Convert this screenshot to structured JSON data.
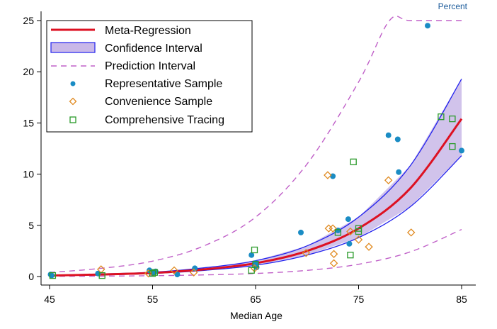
{
  "chart_data": {
    "type": "scatter",
    "title": "",
    "unit_label": "Percent",
    "xlabel": "Median Age",
    "ylabel": "",
    "xlim": [
      45,
      85
    ],
    "ylim": [
      -1,
      25.5
    ],
    "x_ticks": [
      45,
      55,
      65,
      75,
      85
    ],
    "y_ticks": [
      0,
      5,
      10,
      15,
      20,
      25
    ],
    "grid": "none",
    "legend_position": "top-left",
    "legend": [
      {
        "label": "Meta-Regression",
        "kind": "line",
        "color": "#dd1122"
      },
      {
        "label": "Confidence Interval",
        "kind": "band",
        "color": "#2222ee",
        "fill": "#c9b8e8"
      },
      {
        "label": "Prediction Interval",
        "kind": "dashed",
        "color": "#c060c8"
      },
      {
        "label": "Representative Sample",
        "kind": "dot",
        "color": "#1a8cc4"
      },
      {
        "label": "Convenience Sample",
        "kind": "diamond",
        "color": "#e08a20"
      },
      {
        "label": "Comprehensive Tracing",
        "kind": "square",
        "color": "#2a9a2a"
      }
    ],
    "curves": {
      "meta_regression": {
        "x": [
          45,
          50,
          55,
          60,
          65,
          70,
          75,
          80,
          85
        ],
        "y": [
          0.1,
          0.2,
          0.35,
          0.7,
          1.3,
          2.5,
          4.7,
          8.6,
          15.4
        ]
      },
      "ci_lower": {
        "x": [
          45,
          50,
          55,
          60,
          65,
          70,
          75,
          80,
          85
        ],
        "y": [
          0.08,
          0.16,
          0.3,
          0.6,
          1.1,
          2.1,
          3.8,
          6.8,
          11.8
        ]
      },
      "ci_upper": {
        "x": [
          45,
          50,
          55,
          60,
          65,
          70,
          75,
          80,
          85
        ],
        "y": [
          0.13,
          0.25,
          0.42,
          0.85,
          1.55,
          3.0,
          5.8,
          10.8,
          19.3
        ]
      },
      "pi_lower": {
        "x": [
          45,
          50,
          55,
          60,
          65,
          70,
          75,
          80,
          85
        ],
        "y": [
          0.02,
          0.04,
          0.08,
          0.16,
          0.3,
          0.6,
          1.2,
          2.4,
          4.6
        ]
      },
      "pi_upper": {
        "x": [
          45,
          50,
          55,
          60,
          65,
          70,
          75,
          78,
          80,
          85
        ],
        "y": [
          0.4,
          0.8,
          1.5,
          3.0,
          5.8,
          11.0,
          19.0,
          25.0,
          25.0,
          25.0
        ]
      }
    },
    "series": [
      {
        "name": "Representative Sample",
        "points": [
          [
            45.1,
            0.2
          ],
          [
            45.2,
            0.1
          ],
          [
            49.7,
            0.3
          ],
          [
            54.7,
            0.6
          ],
          [
            55.1,
            0.4
          ],
          [
            55.3,
            0.5
          ],
          [
            57.4,
            0.2
          ],
          [
            59.1,
            0.8
          ],
          [
            64.6,
            2.1
          ],
          [
            65.0,
            1.3
          ],
          [
            65.1,
            0.9
          ],
          [
            69.4,
            4.3
          ],
          [
            72.5,
            9.8
          ],
          [
            73.0,
            4.5
          ],
          [
            74.0,
            5.6
          ],
          [
            74.1,
            3.2
          ],
          [
            77.9,
            13.8
          ],
          [
            78.8,
            13.4
          ],
          [
            78.9,
            10.2
          ],
          [
            81.7,
            24.5
          ],
          [
            85.0,
            12.3
          ]
        ]
      },
      {
        "name": "Convenience Sample",
        "points": [
          [
            50.0,
            0.7
          ],
          [
            54.6,
            0.3
          ],
          [
            57.1,
            0.6
          ],
          [
            59.0,
            0.4
          ],
          [
            64.9,
            0.8
          ],
          [
            69.9,
            2.3
          ],
          [
            72.0,
            9.9
          ],
          [
            72.1,
            4.7
          ],
          [
            72.5,
            4.7
          ],
          [
            72.6,
            2.2
          ],
          [
            72.6,
            1.3
          ],
          [
            74.2,
            4.4
          ],
          [
            75.0,
            3.6
          ],
          [
            76.0,
            2.9
          ],
          [
            77.9,
            9.4
          ],
          [
            80.1,
            4.3
          ]
        ]
      },
      {
        "name": "Comprehensive Tracing",
        "points": [
          [
            45.3,
            0.1
          ],
          [
            50.1,
            0.1
          ],
          [
            55.0,
            0.3
          ],
          [
            55.2,
            0.4
          ],
          [
            64.6,
            0.6
          ],
          [
            64.9,
            2.6
          ],
          [
            65.0,
            1.2
          ],
          [
            73.0,
            4.3
          ],
          [
            74.2,
            2.1
          ],
          [
            74.5,
            11.2
          ],
          [
            75.0,
            4.7
          ],
          [
            75.0,
            4.4
          ],
          [
            83.0,
            15.6
          ],
          [
            84.1,
            15.4
          ],
          [
            84.1,
            12.7
          ]
        ]
      }
    ]
  }
}
